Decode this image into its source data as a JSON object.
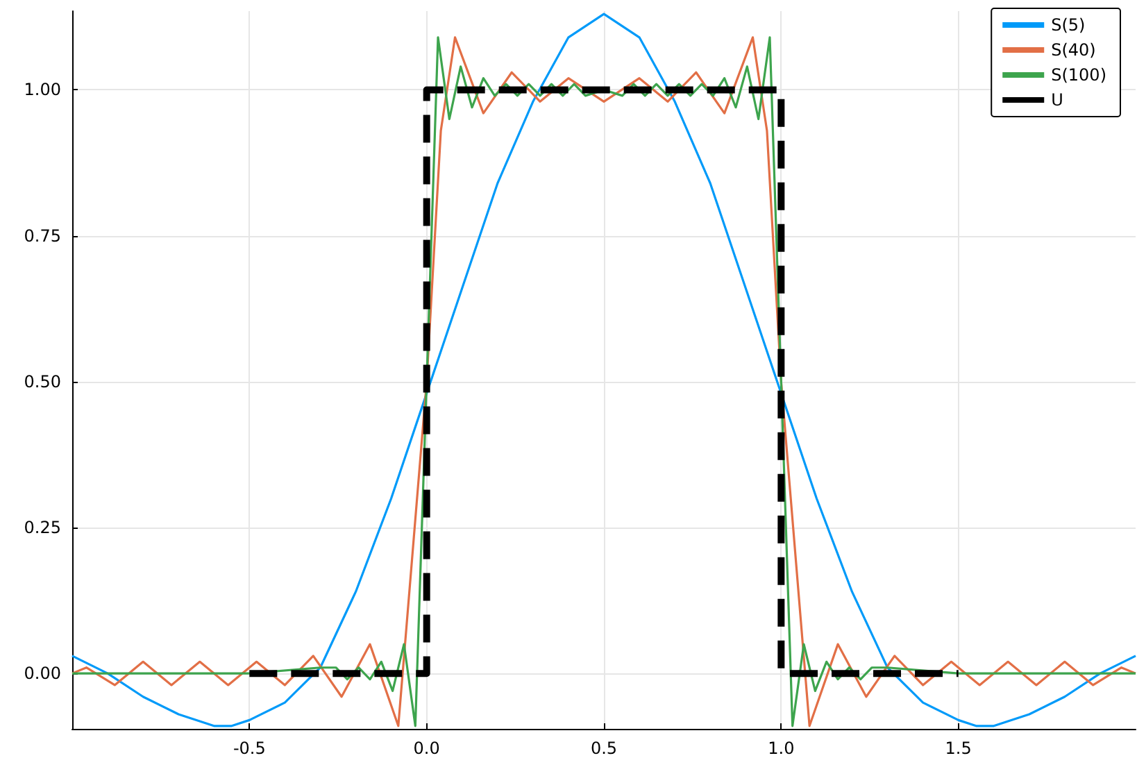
{
  "chart_data": {
    "type": "line",
    "xlim": [
      -1,
      2
    ],
    "ylim": [
      -0.095,
      1.135
    ],
    "xticks": [
      {
        "value": -0.5,
        "label": "-0.5"
      },
      {
        "value": 0,
        "label": "0.0"
      },
      {
        "value": 0.5,
        "label": "0.5"
      },
      {
        "value": 1,
        "label": "1.0"
      },
      {
        "value": 1.5,
        "label": "1.5"
      }
    ],
    "yticks": [
      {
        "value": 0,
        "label": "0.00"
      },
      {
        "value": 0.25,
        "label": "0.25"
      },
      {
        "value": 0.5,
        "label": "0.50"
      },
      {
        "value": 0.75,
        "label": "0.75"
      },
      {
        "value": 1,
        "label": "1.00"
      }
    ],
    "grid": true,
    "legend": "top right",
    "marker": "none",
    "series": [
      {
        "name": "S(5)",
        "color": "#009af9",
        "line_style": "solid",
        "x": [
          -1.0,
          -0.9,
          -0.8,
          -0.7,
          -0.6,
          -0.55,
          -0.5,
          -0.4,
          -0.3,
          -0.2,
          -0.1,
          0,
          0.1,
          0.2,
          0.3,
          0.4,
          0.5,
          0.6,
          0.7,
          0.8,
          0.9,
          1.1,
          1.2,
          1.3,
          1.4,
          1.5,
          1.55,
          1.6,
          1.7,
          1.8,
          1.9,
          2.0
        ],
        "values": [
          0.03,
          0.0,
          -0.04,
          -0.07,
          -0.09,
          -0.09,
          -0.08,
          -0.05,
          0.01,
          0.14,
          0.3,
          0.48,
          0.66,
          0.84,
          0.98,
          1.09,
          1.13,
          1.09,
          0.98,
          0.84,
          0.66,
          0.3,
          0.14,
          0.01,
          -0.05,
          -0.08,
          -0.09,
          -0.09,
          -0.07,
          -0.04,
          0.0,
          0.03
        ]
      },
      {
        "name": "S(40)",
        "color": "#e26f46",
        "line_style": "solid",
        "x": [
          -1.0,
          -0.96,
          -0.88,
          -0.8,
          -0.72,
          -0.64,
          -0.56,
          -0.48,
          -0.4,
          -0.32,
          -0.24,
          -0.16,
          -0.08,
          0,
          0.04,
          0.08,
          0.16,
          0.24,
          0.32,
          0.4,
          0.5,
          0.6,
          0.68,
          0.76,
          0.84,
          0.92,
          0.96,
          1.0,
          1.08,
          1.16,
          1.24,
          1.32,
          1.4,
          1.48,
          1.56,
          1.64,
          1.72,
          1.8,
          1.88,
          1.96,
          2.0
        ],
        "values": [
          0.0,
          0.01,
          -0.02,
          0.02,
          -0.02,
          0.02,
          -0.02,
          0.02,
          -0.02,
          0.03,
          -0.04,
          0.05,
          -0.09,
          0.5,
          0.93,
          1.09,
          0.96,
          1.03,
          0.98,
          1.02,
          0.98,
          1.02,
          0.98,
          1.03,
          0.96,
          1.09,
          0.93,
          0.5,
          -0.09,
          0.05,
          -0.04,
          0.03,
          -0.02,
          0.02,
          -0.02,
          0.02,
          -0.02,
          0.02,
          -0.02,
          0.01,
          0.0
        ]
      },
      {
        "name": "S(100)",
        "color": "#3da44d",
        "line_style": "solid",
        "x": [
          -1.0,
          -0.5,
          -0.3,
          -0.256,
          -0.224,
          -0.192,
          -0.16,
          -0.128,
          -0.096,
          -0.064,
          -0.032,
          0,
          0.032,
          0.064,
          0.096,
          0.128,
          0.16,
          0.192,
          0.224,
          0.256,
          0.288,
          0.32,
          0.352,
          0.384,
          0.416,
          0.448,
          0.5,
          0.552,
          0.584,
          0.616,
          0.648,
          0.68,
          0.712,
          0.744,
          0.776,
          0.808,
          0.84,
          0.872,
          0.904,
          0.936,
          0.968,
          1.0,
          1.032,
          1.064,
          1.096,
          1.128,
          1.16,
          1.192,
          1.224,
          1.256,
          1.3,
          1.5,
          2.0
        ],
        "values": [
          0.0,
          0.0,
          0.01,
          0.01,
          -0.01,
          0.01,
          -0.01,
          0.02,
          -0.03,
          0.05,
          -0.09,
          0.5,
          1.09,
          0.95,
          1.04,
          0.97,
          1.02,
          0.99,
          1.01,
          0.99,
          1.01,
          0.99,
          1.01,
          0.99,
          1.01,
          0.99,
          1.0,
          0.99,
          1.01,
          0.99,
          1.01,
          0.99,
          1.01,
          0.99,
          1.01,
          0.99,
          1.02,
          0.97,
          1.04,
          0.95,
          1.09,
          0.5,
          -0.09,
          0.05,
          -0.03,
          0.02,
          -0.01,
          0.01,
          -0.01,
          0.01,
          0.01,
          0.0,
          0.0
        ]
      },
      {
        "name": "U",
        "color": "#000000",
        "line_style": "dashed",
        "x": [
          -0.5,
          0,
          0,
          1,
          1,
          1.5
        ],
        "values": [
          0,
          0,
          1,
          1,
          0,
          0
        ]
      }
    ]
  }
}
